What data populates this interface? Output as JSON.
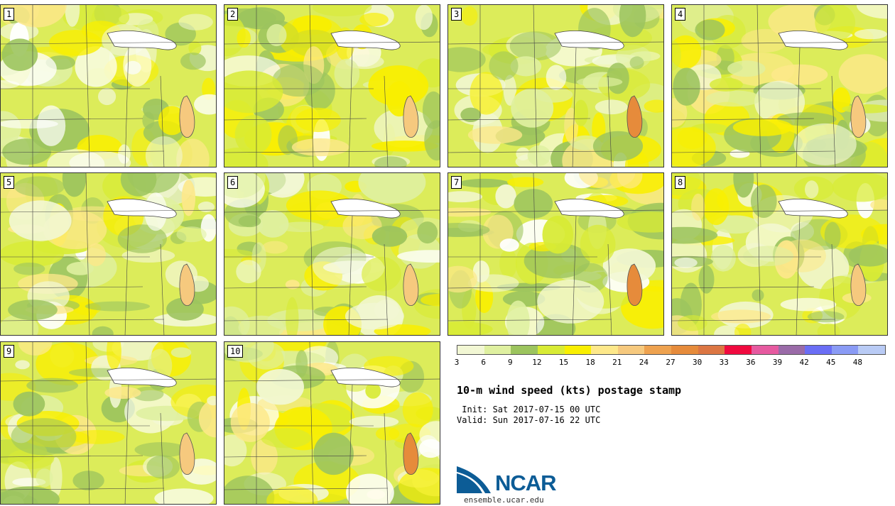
{
  "panels": [
    {
      "number": "1"
    },
    {
      "number": "2"
    },
    {
      "number": "3"
    },
    {
      "number": "4"
    },
    {
      "number": "5"
    },
    {
      "number": "6"
    },
    {
      "number": "7"
    },
    {
      "number": "8"
    },
    {
      "number": "9"
    },
    {
      "number": "10"
    }
  ],
  "legend": {
    "colors": [
      "#f2f7d4",
      "#dff0a0",
      "#9cc45e",
      "#d8eb35",
      "#f9ef00",
      "#fde88a",
      "#f6c97e",
      "#eea24f",
      "#e68b3b",
      "#dc7643",
      "#f00a3f",
      "#e65aa0",
      "#9a6ba8",
      "#6b6ef5",
      "#8a9bf5",
      "#b9cbf5"
    ],
    "tick_labels": [
      "3",
      "6",
      "9",
      "12",
      "15",
      "18",
      "21",
      "24",
      "27",
      "30",
      "33",
      "36",
      "39",
      "42",
      "45",
      "48"
    ]
  },
  "title": "10-m wind speed (kts) postage stamp",
  "init": " Init: Sat 2017-07-15 00 UTC",
  "valid": "Valid: Sun 2017-07-16 22 UTC",
  "logo": {
    "text": "NCAR",
    "url": "ensemble.ucar.edu",
    "color": "#0c5c96"
  }
}
